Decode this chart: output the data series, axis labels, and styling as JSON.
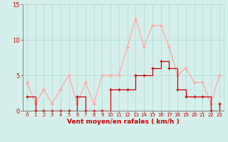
{
  "hours": [
    0,
    1,
    2,
    3,
    4,
    5,
    6,
    7,
    8,
    9,
    10,
    11,
    12,
    13,
    14,
    15,
    16,
    17,
    18,
    19,
    20,
    21,
    22,
    23
  ],
  "vent_moyen": [
    2,
    0,
    0,
    0,
    0,
    0,
    2,
    0,
    0,
    0,
    3,
    3,
    3,
    5,
    5,
    6,
    7,
    6,
    3,
    2,
    2,
    2,
    0,
    1
  ],
  "rafales": [
    4,
    1,
    3,
    1,
    3,
    5,
    1,
    4,
    1,
    5,
    5,
    5,
    9,
    13,
    9,
    12,
    12,
    9,
    5,
    6,
    4,
    4,
    1,
    5
  ],
  "ylim": [
    0,
    15
  ],
  "xlim": [
    -0.5,
    23.5
  ],
  "yticks": [
    0,
    5,
    10,
    15
  ],
  "xticks": [
    0,
    1,
    2,
    3,
    4,
    5,
    6,
    7,
    8,
    9,
    10,
    11,
    12,
    13,
    14,
    15,
    16,
    17,
    18,
    19,
    20,
    21,
    22,
    23
  ],
  "xlabel": "Vent moyen/en rafales ( km/h )",
  "color_moyen": "#cc0000",
  "color_rafales": "#ffaaaa",
  "bg_color": "#d5f0ec",
  "grid_color": "#aad8d0",
  "axis_color": "#cc0000",
  "label_color": "#cc0000",
  "spine_color": "#888888"
}
